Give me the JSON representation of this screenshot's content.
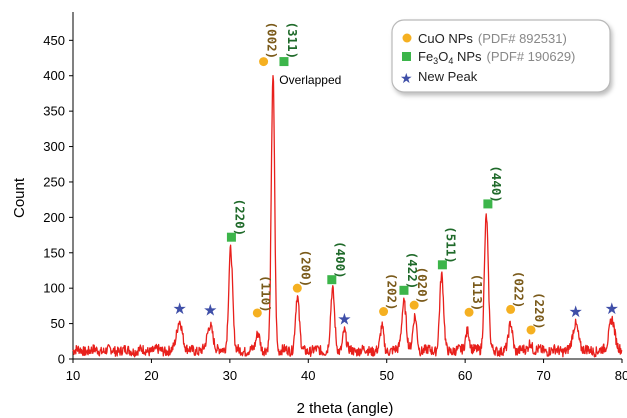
{
  "chart_data": {
    "type": "line",
    "title": "",
    "xlabel": "2 theta (angle)",
    "ylabel": "Count",
    "xlim": [
      10,
      80
    ],
    "ylim": [
      0,
      490
    ],
    "xticks": [
      10,
      20,
      30,
      40,
      50,
      60,
      70,
      80
    ],
    "yticks": [
      0,
      50,
      100,
      150,
      200,
      250,
      300,
      350,
      400,
      450
    ],
    "line_color": "#e8201c",
    "baseline": 12,
    "peaks": [
      {
        "x": 23.6,
        "y": 55,
        "w": 0.5
      },
      {
        "x": 27.5,
        "y": 48,
        "w": 0.5
      },
      {
        "x": 30.1,
        "y": 157,
        "w": 0.35
      },
      {
        "x": 33.6,
        "y": 38,
        "w": 0.35
      },
      {
        "x": 35.5,
        "y": 402,
        "w": 0.3
      },
      {
        "x": 38.6,
        "y": 88,
        "w": 0.35
      },
      {
        "x": 43.1,
        "y": 97,
        "w": 0.35
      },
      {
        "x": 44.6,
        "y": 40,
        "w": 0.3
      },
      {
        "x": 49.4,
        "y": 45,
        "w": 0.3
      },
      {
        "x": 52.2,
        "y": 82,
        "w": 0.4
      },
      {
        "x": 53.6,
        "y": 60,
        "w": 0.35
      },
      {
        "x": 57.0,
        "y": 118,
        "w": 0.35
      },
      {
        "x": 60.3,
        "y": 42,
        "w": 0.35
      },
      {
        "x": 62.7,
        "y": 203,
        "w": 0.35
      },
      {
        "x": 65.8,
        "y": 50,
        "w": 0.35
      },
      {
        "x": 68.3,
        "y": 25,
        "w": 0.3
      },
      {
        "x": 74.1,
        "y": 50,
        "w": 0.5
      },
      {
        "x": 78.7,
        "y": 58,
        "w": 0.5
      }
    ],
    "legend": {
      "position": "top-right",
      "entries": [
        {
          "label": "CuO NPs",
          "pdf": "(PDF# 892531)",
          "marker": "circle",
          "color": "#f5b021"
        },
        {
          "label_main": "Fe",
          "label_sub": "3",
          "label_mid": "O",
          "label_sub2": "4",
          "label_end": " NPs",
          "pdf": "(PDF# 190629)",
          "marker": "square",
          "color": "#3cb54a"
        },
        {
          "label": "New Peak",
          "marker": "star",
          "color": "#3f4fa8"
        }
      ]
    },
    "annotations": {
      "overlapped": {
        "text": "Overlapped",
        "x": 36.3,
        "y": 388
      },
      "cuo_markers": [
        {
          "x": 34.3,
          "y": 420,
          "hkl": "(002)",
          "hkl_y": 450
        },
        {
          "x": 33.5,
          "y": 65,
          "hkl": "(110)",
          "hkl_y": 92
        },
        {
          "x": 38.6,
          "y": 100,
          "hkl": "(200)",
          "hkl_y": 128
        },
        {
          "x": 49.6,
          "y": 67,
          "hkl": "(202)",
          "hkl_y": 95
        },
        {
          "x": 53.5,
          "y": 76,
          "hkl": "(020)",
          "hkl_y": 104
        },
        {
          "x": 60.5,
          "y": 66,
          "hkl": "(113)",
          "hkl_y": 94
        },
        {
          "x": 65.8,
          "y": 70,
          "hkl": "(022)",
          "hkl_y": 98
        },
        {
          "x": 68.4,
          "y": 41,
          "hkl": "(220)",
          "hkl_y": 68
        }
      ],
      "fe_markers": [
        {
          "x": 36.9,
          "y": 420,
          "hkl": "(311)",
          "hkl_y": 450
        },
        {
          "x": 30.2,
          "y": 172,
          "hkl": "(220)",
          "hkl_y": 200
        },
        {
          "x": 43.0,
          "y": 112,
          "hkl": "(400)",
          "hkl_y": 140
        },
        {
          "x": 52.2,
          "y": 97,
          "hkl": "(422)",
          "hkl_y": 125
        },
        {
          "x": 57.1,
          "y": 133,
          "hkl": "(511)",
          "hkl_y": 161
        },
        {
          "x": 62.9,
          "y": 219,
          "hkl": "(440)",
          "hkl_y": 247
        }
      ],
      "new_peak_markers": [
        {
          "x": 23.6,
          "y": 72
        },
        {
          "x": 27.5,
          "y": 70
        },
        {
          "x": 44.6,
          "y": 57
        },
        {
          "x": 74.1,
          "y": 68
        },
        {
          "x": 78.7,
          "y": 72
        }
      ]
    }
  }
}
